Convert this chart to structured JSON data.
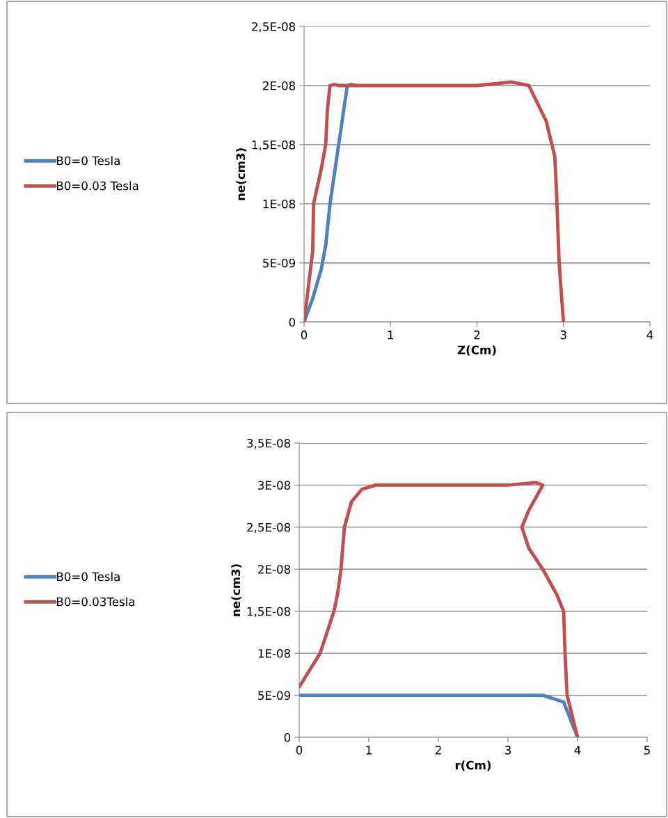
{
  "chart_data": [
    {
      "type": "line",
      "xlabel": "Z(Cm)",
      "ylabel": "ne(cm3)",
      "legend": "left",
      "grid": "y",
      "line_style": "solid",
      "marker": "none",
      "xlim": [
        0,
        4
      ],
      "xticks": [
        0,
        1,
        2,
        3,
        4
      ],
      "ylim": [
        0,
        2.5e-08
      ],
      "yticks": [
        {
          "value": 0,
          "label": "0"
        },
        {
          "value": 5e-09,
          "label": "5E-09"
        },
        {
          "value": 1e-08,
          "label": "1E-08"
        },
        {
          "value": 1.5e-08,
          "label": "1,5E-08"
        },
        {
          "value": 2e-08,
          "label": "2E-08"
        },
        {
          "value": 2.5e-08,
          "label": "2,5E-08"
        }
      ],
      "series": [
        {
          "name": "B0=0 Tesla",
          "color": "#4f81bd",
          "x": [
            0,
            0.1,
            0.2,
            0.25,
            0.3,
            0.4,
            0.5,
            0.55,
            0.6
          ],
          "values": [
            0,
            2e-09,
            4.5e-09,
            6.5e-09,
            1e-08,
            1.5e-08,
            2e-08,
            2.01e-08,
            2e-08
          ]
        },
        {
          "name": "B0=0.03 Tesla",
          "color": "#c0504d",
          "x": [
            0,
            0.05,
            0.1,
            0.11,
            0.2,
            0.25,
            0.27,
            0.3,
            0.35,
            0.4,
            2,
            2.4,
            2.6,
            2.8,
            2.9,
            2.92,
            2.95,
            3
          ],
          "values": [
            0,
            3e-09,
            6e-09,
            1e-08,
            1.3e-08,
            1.5e-08,
            1.8e-08,
            2e-08,
            2.01e-08,
            2e-08,
            2e-08,
            2.03e-08,
            2e-08,
            1.7e-08,
            1.4e-08,
            1.1e-08,
            5e-09,
            0
          ]
        }
      ]
    },
    {
      "type": "line",
      "xlabel": "r(Cm)",
      "ylabel": "ne(cm3)",
      "legend": "left",
      "grid": "y",
      "line_style": "solid",
      "marker": "none",
      "xlim": [
        0,
        5
      ],
      "xticks": [
        0,
        1,
        2,
        3,
        4,
        5
      ],
      "ylim": [
        0,
        3.5e-08
      ],
      "yticks": [
        {
          "value": 0,
          "label": "0"
        },
        {
          "value": 5e-09,
          "label": "5E-09"
        },
        {
          "value": 1e-08,
          "label": "1E-08"
        },
        {
          "value": 1.5e-08,
          "label": "1,5E-08"
        },
        {
          "value": 2e-08,
          "label": "2E-08"
        },
        {
          "value": 2.5e-08,
          "label": "2,5E-08"
        },
        {
          "value": 3e-08,
          "label": "3E-08"
        },
        {
          "value": 3.5e-08,
          "label": "3,5E-08"
        }
      ],
      "series": [
        {
          "name": "B0=0 Tesla",
          "color": "#4f81bd",
          "x": [
            0,
            3,
            3.5,
            3.8,
            4
          ],
          "values": [
            5e-09,
            5e-09,
            5e-09,
            4.2e-09,
            0
          ]
        },
        {
          "name": "B0=0.03Tesla",
          "color": "#c0504d",
          "x": [
            0,
            0.3,
            0.5,
            0.55,
            0.6,
            0.65,
            0.75,
            0.9,
            1.1,
            1.5,
            3,
            3.4,
            3.5,
            3.3,
            3.2,
            3.3,
            3.5,
            3.7,
            3.8,
            3.82,
            3.85,
            4
          ],
          "values": [
            6e-09,
            1e-08,
            1.5e-08,
            1.7e-08,
            2e-08,
            2.5e-08,
            2.8e-08,
            2.95e-08,
            3e-08,
            3e-08,
            3e-08,
            3.03e-08,
            3e-08,
            2.7e-08,
            2.5e-08,
            2.25e-08,
            2e-08,
            1.7e-08,
            1.5e-08,
            1e-08,
            5e-09,
            0
          ]
        }
      ]
    }
  ]
}
